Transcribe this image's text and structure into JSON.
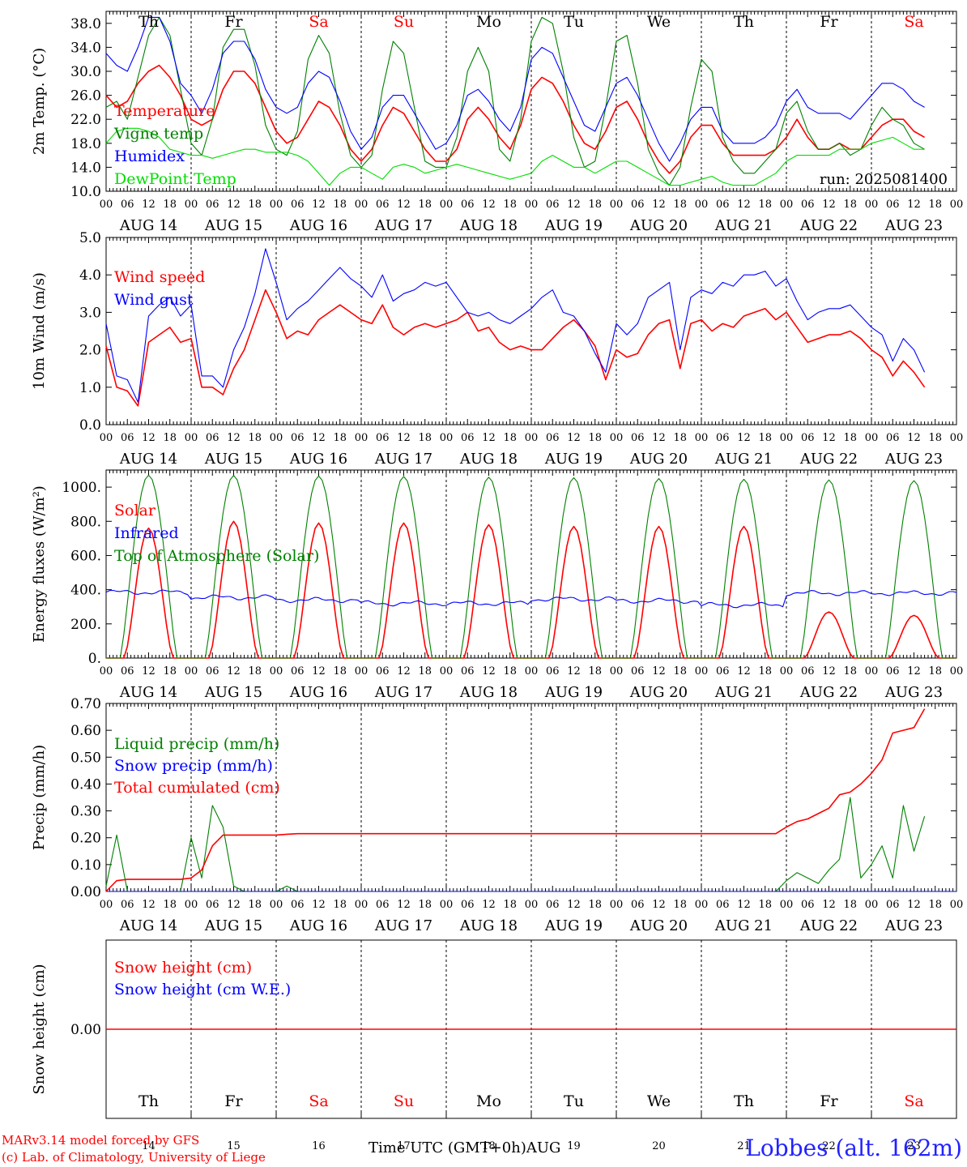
{
  "page": {
    "credit_line1": "MARv3.14 model forced by GFS",
    "credit_line2": "(c) Lab. of Climatology, University of Liege",
    "time_axis_label": "Time UTC (GMT+0h)",
    "month": "AUG",
    "station": "Lobbes (alt. 162m)",
    "run": "run: 2025081400"
  },
  "days": [
    {
      "abbr": "Th",
      "date": "AUG 14",
      "num": "14",
      "weekend": false
    },
    {
      "abbr": "Fr",
      "date": "AUG 15",
      "num": "15",
      "weekend": false
    },
    {
      "abbr": "Sa",
      "date": "AUG 16",
      "num": "16",
      "weekend": true
    },
    {
      "abbr": "Su",
      "date": "AUG 17",
      "num": "17",
      "weekend": true
    },
    {
      "abbr": "Mo",
      "date": "AUG 18",
      "num": "18",
      "weekend": false
    },
    {
      "abbr": "Tu",
      "date": "AUG 19",
      "num": "19",
      "weekend": false
    },
    {
      "abbr": "We",
      "date": "AUG 20",
      "num": "20",
      "weekend": false
    },
    {
      "abbr": "Th",
      "date": "AUG 21",
      "num": "21",
      "weekend": false
    },
    {
      "abbr": "Fr",
      "date": "AUG 22",
      "num": "22",
      "weekend": false
    },
    {
      "abbr": "Sa",
      "date": "AUG 23",
      "num": "23",
      "weekend": true
    }
  ],
  "hour_ticks": [
    "00",
    "06",
    "12",
    "18"
  ],
  "colors": {
    "red": "#ff0000",
    "blue": "#0000ff",
    "green": "#008000",
    "lightgreen": "#00dd00",
    "weekday": "#000000",
    "weekend": "#ff0000"
  },
  "chart_data": [
    {
      "type": "line",
      "ylabel": "2m Temp. (°C)",
      "ylim": [
        10,
        40
      ],
      "yticks": [
        "10.0",
        "14.0",
        "18.0",
        "22.0",
        "26.0",
        "30.0",
        "34.0",
        "38.0"
      ],
      "show_dates": true,
      "annotation": "run: 2025081400",
      "x_hours_step": 3,
      "series": [
        {
          "name": "Temperature",
          "color": "red",
          "values": [
            26,
            24,
            25,
            28,
            30,
            31,
            29,
            26,
            22,
            21,
            22,
            27,
            30,
            30,
            28,
            24,
            20,
            18,
            19,
            22,
            25,
            24,
            21,
            17,
            15,
            17,
            21,
            24,
            23,
            20,
            17,
            15,
            15,
            17,
            22,
            24,
            22,
            19,
            17,
            21,
            27,
            29,
            28,
            25,
            21,
            18,
            17,
            20,
            24,
            25,
            22,
            18,
            15,
            13,
            15,
            19,
            21,
            21,
            18,
            16,
            16,
            16,
            16,
            17,
            19,
            22,
            19,
            17,
            17,
            18,
            17,
            17,
            19,
            21,
            22,
            22,
            20,
            19
          ]
        },
        {
          "name": "Vigne temp",
          "color": "green",
          "values": [
            24,
            25,
            22,
            29,
            36,
            39,
            36,
            27,
            18,
            16,
            22,
            34,
            37,
            37,
            31,
            21,
            17,
            16,
            20,
            32,
            36,
            33,
            23,
            16,
            14,
            16,
            27,
            35,
            33,
            24,
            15,
            14,
            14,
            19,
            30,
            34,
            30,
            17,
            15,
            22,
            35,
            39,
            38,
            30,
            19,
            14,
            15,
            24,
            35,
            36,
            28,
            17,
            13,
            11,
            14,
            24,
            32,
            30,
            19,
            15,
            13,
            13,
            15,
            17,
            23,
            25,
            20,
            17,
            17,
            18,
            16,
            17,
            21,
            24,
            22,
            21,
            18,
            17
          ]
        },
        {
          "name": "Humidex",
          "color": "blue",
          "values": [
            33,
            31,
            30,
            34,
            39,
            39,
            35,
            28,
            26,
            23,
            27,
            33,
            35,
            35,
            32,
            27,
            24,
            23,
            24,
            28,
            30,
            29,
            25,
            20,
            17,
            19,
            24,
            26,
            26,
            23,
            20,
            17,
            18,
            21,
            26,
            27,
            25,
            22,
            20,
            24,
            32,
            34,
            33,
            29,
            25,
            21,
            20,
            24,
            28,
            29,
            26,
            22,
            18,
            15,
            18,
            22,
            24,
            24,
            20,
            18,
            18,
            18,
            19,
            21,
            25,
            27,
            24,
            23,
            23,
            23,
            22,
            24,
            26,
            28,
            28,
            27,
            25,
            24
          ]
        },
        {
          "name": "DewPoint Temp",
          "color": "lightgreen",
          "values": [
            18,
            20,
            20.5,
            20.5,
            20,
            19,
            17,
            16.5,
            16,
            16,
            15.5,
            16,
            16.5,
            17,
            17,
            16.5,
            16.5,
            16.5,
            16,
            15,
            13,
            11,
            13,
            14,
            14,
            13,
            12,
            14,
            14.5,
            14,
            13,
            13.5,
            14,
            14.5,
            14,
            13.5,
            13,
            12.5,
            12,
            12.5,
            13,
            15,
            16,
            15,
            14,
            14,
            13,
            14,
            15,
            15,
            14,
            13,
            12,
            11,
            11,
            11.5,
            12,
            12.5,
            11.5,
            11,
            11,
            11,
            12,
            13,
            15,
            16,
            16,
            16,
            16,
            17,
            17,
            17,
            18,
            18.5,
            19,
            18,
            17,
            17
          ]
        }
      ]
    },
    {
      "type": "line",
      "ylabel": "10m Wind (m/s)",
      "ylim": [
        0,
        5
      ],
      "yticks": [
        "0.0",
        "1.0",
        "2.0",
        "3.0",
        "4.0",
        "5.0"
      ],
      "show_dates": true,
      "x_hours_step": 3,
      "series": [
        {
          "name": "Wind speed",
          "color": "red",
          "values": [
            2.1,
            1.0,
            0.9,
            0.5,
            2.2,
            2.4,
            2.6,
            2.2,
            2.3,
            1.0,
            1.0,
            0.8,
            1.5,
            2.0,
            2.8,
            3.6,
            3.0,
            2.3,
            2.5,
            2.4,
            2.8,
            3.0,
            3.2,
            3.0,
            2.8,
            2.7,
            3.2,
            2.6,
            2.4,
            2.6,
            2.7,
            2.6,
            2.7,
            2.8,
            3.0,
            2.5,
            2.6,
            2.2,
            2.0,
            2.1,
            2.0,
            2.0,
            2.3,
            2.6,
            2.8,
            2.5,
            2.1,
            1.2,
            2.0,
            1.8,
            1.9,
            2.4,
            2.7,
            2.8,
            1.5,
            2.7,
            2.8,
            2.5,
            2.7,
            2.6,
            2.9,
            3.0,
            3.1,
            2.8,
            3.0,
            2.6,
            2.2,
            2.3,
            2.4,
            2.4,
            2.5,
            2.3,
            2.0,
            1.8,
            1.3,
            1.7,
            1.4,
            1.0
          ]
        },
        {
          "name": "Wind gust",
          "color": "blue",
          "values": [
            2.7,
            1.3,
            1.2,
            0.6,
            2.9,
            3.2,
            3.4,
            2.9,
            3.2,
            1.3,
            1.3,
            1.0,
            2.0,
            2.6,
            3.5,
            4.7,
            3.8,
            2.8,
            3.1,
            3.3,
            3.6,
            3.9,
            4.2,
            3.9,
            3.7,
            3.4,
            4.0,
            3.3,
            3.5,
            3.6,
            3.8,
            3.7,
            3.8,
            3.4,
            3.0,
            2.9,
            3.0,
            2.8,
            2.7,
            2.9,
            3.1,
            3.4,
            3.6,
            3.0,
            2.9,
            2.5,
            1.9,
            1.4,
            2.7,
            2.4,
            2.7,
            3.4,
            3.6,
            3.8,
            2.0,
            3.4,
            3.6,
            3.5,
            3.8,
            3.7,
            4.0,
            4.0,
            4.1,
            3.7,
            3.9,
            3.3,
            2.8,
            3.0,
            3.1,
            3.1,
            3.2,
            2.9,
            2.6,
            2.4,
            1.7,
            2.3,
            2.0,
            1.4
          ]
        }
      ]
    },
    {
      "type": "line",
      "ylabel": "Energy fluxes (W/m²)",
      "ylim": [
        0,
        1100
      ],
      "yticks": [
        "0.",
        "200.",
        "400.",
        "600.",
        "800.",
        "1000."
      ],
      "show_dates": true,
      "x_hours_step": 1,
      "series": [
        {
          "name": "Solar",
          "color": "red",
          "daily_peak": [
            760,
            800,
            790,
            790,
            780,
            770,
            770,
            770,
            270,
            250
          ]
        },
        {
          "name": "Infrared",
          "color": "blue",
          "daily_mean": [
            385,
            355,
            340,
            320,
            320,
            345,
            335,
            310,
            380,
            380
          ]
        },
        {
          "name": "Top of Atmosphere (Solar)",
          "color": "green",
          "daily_peak": [
            1070,
            1068,
            1065,
            1062,
            1058,
            1055,
            1050,
            1046,
            1042,
            1038
          ]
        }
      ]
    },
    {
      "type": "line",
      "ylabel": "Precip (mm/h)",
      "ylim": [
        0,
        0.7
      ],
      "yticks": [
        "0.00",
        "0.10",
        "0.20",
        "0.30",
        "0.40",
        "0.50",
        "0.60",
        "0.70"
      ],
      "show_dates": true,
      "x_hours_step": 3,
      "series": [
        {
          "name": "Liquid precip (mm/h)",
          "color": "green",
          "values": [
            0.02,
            0.21,
            0.0,
            0.0,
            0.0,
            0.0,
            0.0,
            0.0,
            0.2,
            0.05,
            0.32,
            0.24,
            0.02,
            0.0,
            0.0,
            0.0,
            0.0,
            0.02,
            0.0,
            0.0,
            0.0,
            0.0,
            0.0,
            0.0,
            0.0,
            0.0,
            0.0,
            0.0,
            0.0,
            0.0,
            0.0,
            0.0,
            0.0,
            0.0,
            0.0,
            0.0,
            0.0,
            0.0,
            0.0,
            0.0,
            0.0,
            0.0,
            0.0,
            0.0,
            0.0,
            0.0,
            0.0,
            0.0,
            0.0,
            0.0,
            0.0,
            0.0,
            0.0,
            0.0,
            0.0,
            0.0,
            0.0,
            0.0,
            0.0,
            0.0,
            0.0,
            0.0,
            0.0,
            0.0,
            0.04,
            0.07,
            0.05,
            0.03,
            0.08,
            0.12,
            0.35,
            0.05,
            0.1,
            0.17,
            0.05,
            0.32,
            0.15,
            0.28
          ]
        },
        {
          "name": "Snow precip (mm/h)",
          "color": "blue",
          "values": [
            0,
            0
          ]
        },
        {
          "name": "Total cumulated (cm)",
          "color": "red",
          "values": [
            0.0,
            0.04,
            0.045,
            0.045,
            0.045,
            0.045,
            0.045,
            0.045,
            0.05,
            0.08,
            0.17,
            0.21,
            0.21,
            0.21,
            0.21,
            0.21,
            0.21,
            0.213,
            0.215,
            0.215,
            0.215,
            0.215,
            0.215,
            0.215,
            0.215,
            0.215,
            0.215,
            0.215,
            0.215,
            0.215,
            0.215,
            0.215,
            0.215,
            0.215,
            0.215,
            0.215,
            0.215,
            0.215,
            0.215,
            0.215,
            0.215,
            0.215,
            0.215,
            0.215,
            0.215,
            0.215,
            0.215,
            0.215,
            0.215,
            0.215,
            0.215,
            0.215,
            0.215,
            0.215,
            0.215,
            0.215,
            0.215,
            0.215,
            0.215,
            0.215,
            0.215,
            0.215,
            0.215,
            0.215,
            0.24,
            0.26,
            0.27,
            0.29,
            0.31,
            0.36,
            0.37,
            0.4,
            0.44,
            0.49,
            0.59,
            0.6,
            0.61,
            0.68
          ]
        }
      ]
    },
    {
      "type": "line",
      "ylabel": "Snow height (cm)",
      "yticks": [
        "0.00"
      ],
      "show_dates": false,
      "x_hours_step": 3,
      "series": [
        {
          "name": "Snow height (cm)",
          "color": "red",
          "values": [
            0,
            0
          ]
        },
        {
          "name": "Snow height (cm W.E.)",
          "color": "blue",
          "values": []
        }
      ]
    }
  ]
}
